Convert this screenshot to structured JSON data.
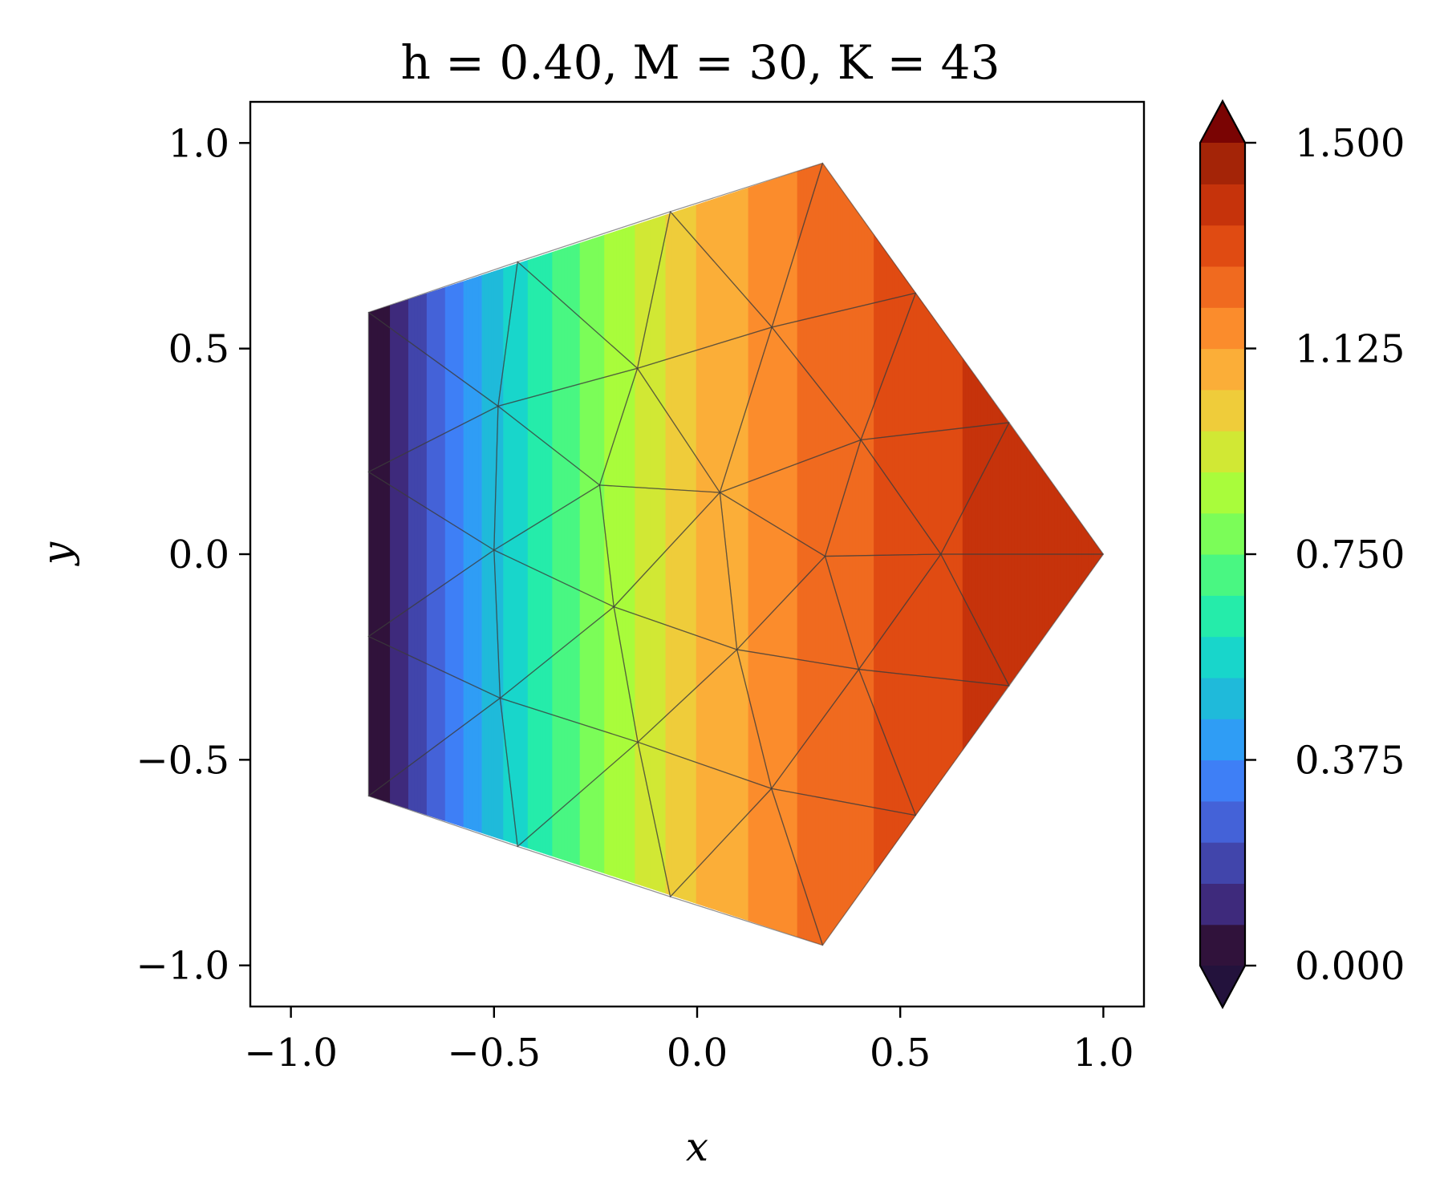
{
  "chart_data": {
    "type": "heatmap",
    "title": "h = 0.40, M = 30, K = 43",
    "xlabel": "x",
    "ylabel": "y",
    "xlim": [
      -1.1,
      1.1
    ],
    "ylim": [
      -1.1,
      1.1
    ],
    "x_ticks": [
      -1.0,
      -0.5,
      0.0,
      0.5,
      1.0
    ],
    "x_tick_labels": [
      "−1.0",
      "−0.5",
      "0.0",
      "0.5",
      "1.0"
    ],
    "y_ticks": [
      1.0,
      0.5,
      0.0,
      -0.5,
      -1.0
    ],
    "y_tick_labels": [
      "1.0",
      "0.5",
      "0.0",
      "−0.5",
      "−1.0"
    ],
    "grid": false,
    "colorbar": {
      "min": 0.0,
      "max": 1.5,
      "levels": 20,
      "extend": "both",
      "ticks": [
        0.0,
        0.375,
        0.75,
        1.125,
        1.5
      ],
      "tick_labels": [
        "0.000",
        "0.375",
        "0.750",
        "1.125",
        "1.500"
      ],
      "colormap": "turbo",
      "colors": [
        "#30123b",
        "#3e2a7c",
        "#4145ab",
        "#4462d8",
        "#3e7ff6",
        "#2f9df5",
        "#1fbada",
        "#18d6cb",
        "#25ecaa",
        "#49f782",
        "#7bfd58",
        "#a9fc3b",
        "#d1e834",
        "#efcc3a",
        "#fbae38",
        "#fb8c2c",
        "#f06a1f",
        "#e04b12",
        "#c6330b",
        "#a42407"
      ],
      "over_color": "#7a0403",
      "under_color": "#23123c"
    },
    "domain": {
      "shape": "pentagon",
      "vertices": [
        [
          1.0,
          0.0
        ],
        [
          0.309,
          0.951
        ],
        [
          -0.809,
          0.588
        ],
        [
          -0.809,
          -0.588
        ],
        [
          0.309,
          -0.951
        ]
      ]
    },
    "field": {
      "description_of_values": "u(x,y) increasing with x",
      "samples": [
        {
          "x": -0.8,
          "y": 0.0,
          "value": 0.0
        },
        {
          "x": -0.5,
          "y": 0.0,
          "value": 0.5
        },
        {
          "x": -0.25,
          "y": 0.0,
          "value": 0.8
        },
        {
          "x": 0.0,
          "y": 0.0,
          "value": 1.05
        },
        {
          "x": 0.25,
          "y": 0.0,
          "value": 1.2
        },
        {
          "x": 0.5,
          "y": 0.0,
          "value": 1.3
        },
        {
          "x": 0.75,
          "y": 0.0,
          "value": 1.38
        },
        {
          "x": 1.0,
          "y": 0.0,
          "value": 1.4
        }
      ]
    },
    "mesh": {
      "nodes": [
        [
          1.0,
          0.0
        ],
        [
          0.309,
          0.951
        ],
        [
          -0.809,
          0.588
        ],
        [
          -0.809,
          -0.588
        ],
        [
          0.309,
          -0.951
        ],
        [
          -0.066,
          0.833
        ],
        [
          -0.442,
          0.711
        ],
        [
          0.538,
          0.635
        ],
        [
          0.768,
          0.32
        ],
        [
          0.768,
          -0.32
        ],
        [
          0.538,
          -0.635
        ],
        [
          -0.066,
          -0.833
        ],
        [
          -0.442,
          -0.711
        ],
        [
          -0.809,
          0.2
        ],
        [
          -0.809,
          -0.2
        ],
        [
          0.184,
          0.552
        ],
        [
          -0.147,
          0.452
        ],
        [
          0.403,
          0.278
        ],
        [
          -0.49,
          0.36
        ],
        [
          -0.24,
          0.168
        ],
        [
          0.056,
          0.15
        ],
        [
          -0.5,
          0.01
        ],
        [
          0.6,
          0.0
        ],
        [
          0.315,
          -0.005
        ],
        [
          -0.205,
          -0.128
        ],
        [
          -0.485,
          -0.35
        ],
        [
          0.098,
          -0.232
        ],
        [
          0.398,
          -0.28
        ],
        [
          -0.146,
          -0.457
        ],
        [
          0.183,
          -0.57
        ]
      ],
      "triangles": [
        [
          2,
          6,
          18
        ],
        [
          6,
          5,
          16
        ],
        [
          6,
          16,
          18
        ],
        [
          5,
          1,
          15
        ],
        [
          5,
          15,
          16
        ],
        [
          1,
          7,
          15
        ],
        [
          7,
          17,
          15
        ],
        [
          7,
          8,
          17
        ],
        [
          8,
          22,
          17
        ],
        [
          8,
          0,
          22
        ],
        [
          0,
          9,
          22
        ],
        [
          9,
          27,
          22
        ],
        [
          9,
          10,
          27
        ],
        [
          10,
          29,
          27
        ],
        [
          10,
          4,
          29
        ],
        [
          4,
          11,
          29
        ],
        [
          11,
          28,
          29
        ],
        [
          11,
          12,
          28
        ],
        [
          12,
          25,
          28
        ],
        [
          12,
          3,
          25
        ],
        [
          3,
          14,
          25
        ],
        [
          14,
          21,
          25
        ],
        [
          14,
          13,
          21
        ],
        [
          13,
          18,
          21
        ],
        [
          13,
          2,
          18
        ],
        [
          18,
          16,
          19
        ],
        [
          18,
          19,
          21
        ],
        [
          16,
          15,
          20
        ],
        [
          16,
          20,
          19
        ],
        [
          15,
          17,
          20
        ],
        [
          17,
          23,
          20
        ],
        [
          17,
          22,
          23
        ],
        [
          22,
          27,
          23
        ],
        [
          27,
          26,
          23
        ],
        [
          27,
          29,
          26
        ],
        [
          29,
          28,
          26
        ],
        [
          28,
          24,
          26
        ],
        [
          28,
          25,
          24
        ],
        [
          25,
          21,
          24
        ],
        [
          21,
          19,
          24
        ],
        [
          19,
          20,
          24
        ],
        [
          20,
          26,
          24
        ],
        [
          20,
          23,
          26
        ]
      ]
    }
  }
}
